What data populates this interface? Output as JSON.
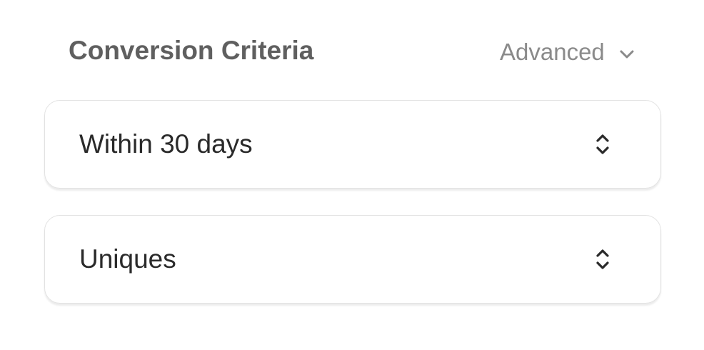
{
  "header": {
    "title": "Conversion Criteria",
    "advanced_label": "Advanced"
  },
  "selects": [
    {
      "value": "Within 30 days"
    },
    {
      "value": "Uniques"
    }
  ]
}
